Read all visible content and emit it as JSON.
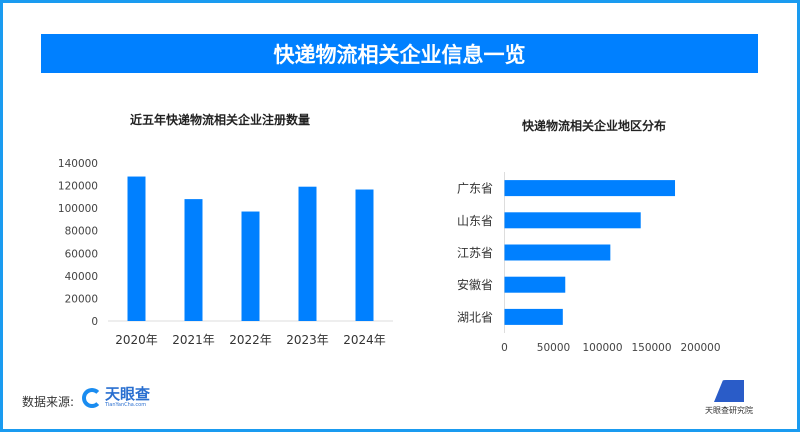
{
  "title": "快递物流相关企业信息一览",
  "source_label": "数据来源:",
  "source_logo": {
    "name": "天眼查",
    "sub": "TianYanCha.com"
  },
  "footer_logo": "天眼查研究院",
  "colors": {
    "bar": "#0080ff",
    "banner": "#0080ff",
    "frame": "#1a9bf0"
  },
  "chart_data": [
    {
      "type": "bar",
      "title": "近五年快递物流相关企业注册数量",
      "categories": [
        "2020年",
        "2021年",
        "2022年",
        "2023年",
        "2024年"
      ],
      "values": [
        128000,
        108000,
        97000,
        119000,
        116500
      ],
      "ylim": [
        0,
        140000
      ],
      "yticks": [
        "0",
        "20000",
        "40000",
        "60000",
        "80000",
        "100000",
        "120000",
        "140000"
      ],
      "xlabel": "",
      "ylabel": "",
      "grid": false
    },
    {
      "type": "bar",
      "orientation": "horizontal",
      "title": "快递物流相关企业地区分布",
      "categories": [
        "广东省",
        "山东省",
        "江苏省",
        "安徽省",
        "湖北省"
      ],
      "values": [
        174000,
        139000,
        108000,
        62000,
        59500
      ],
      "xlim": [
        0,
        200000
      ],
      "xticks": [
        "0",
        "50000",
        "100000",
        "150000",
        "200000"
      ],
      "xlabel": "",
      "ylabel": "",
      "grid": false
    }
  ]
}
